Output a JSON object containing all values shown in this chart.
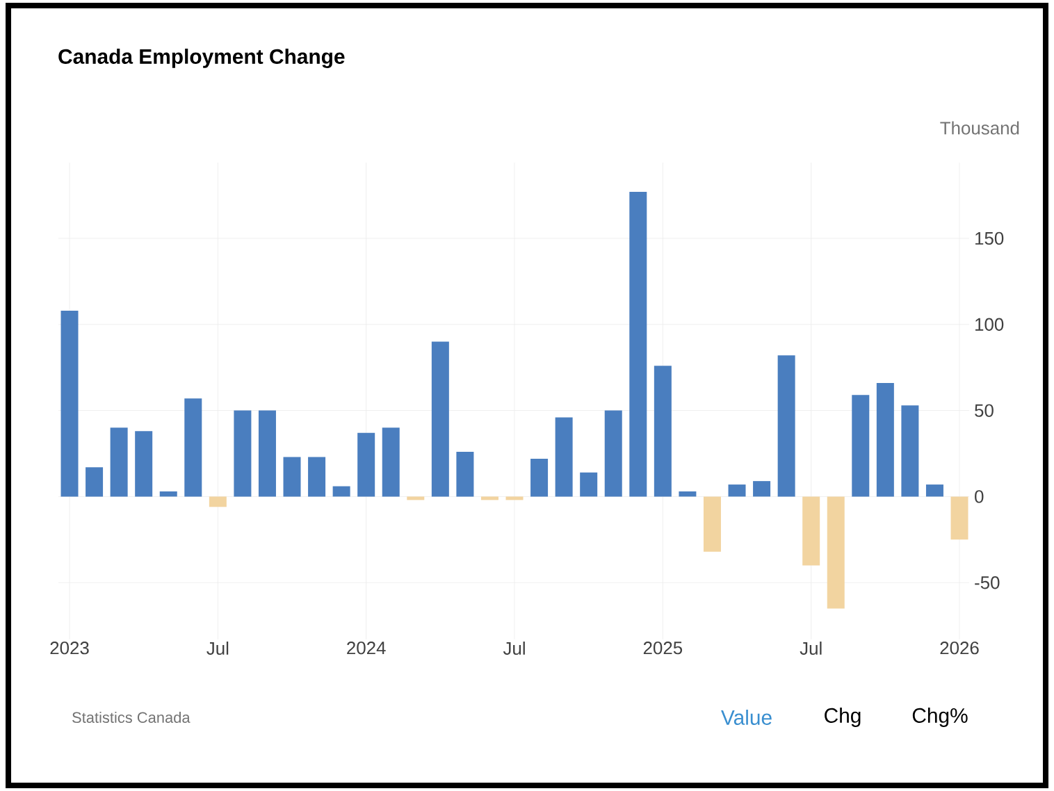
{
  "chart_data": {
    "type": "bar",
    "title": "Canada Employment Change",
    "ylabel": "Thousand",
    "categories": [
      "2023",
      null,
      null,
      null,
      null,
      null,
      "Jul",
      null,
      null,
      null,
      null,
      null,
      "2024",
      null,
      null,
      null,
      null,
      null,
      "Jul",
      null,
      null,
      null,
      null,
      null,
      "2025",
      null,
      null,
      null,
      null,
      null,
      "Jul",
      null,
      null,
      null,
      null,
      null,
      "2026"
    ],
    "values": [
      108,
      17,
      40,
      38,
      3,
      57,
      -6,
      50,
      50,
      23,
      23,
      6,
      37,
      40,
      -2,
      90,
      26,
      -2,
      -2,
      22,
      46,
      14,
      50,
      177,
      76,
      3,
      -32,
      7,
      9,
      82,
      -40,
      -65,
      59,
      66,
      53,
      7,
      -25
    ],
    "colors": [
      "#4a7ebf",
      "#4a7ebf",
      "#4a7ebf",
      "#4a7ebf",
      "#4a7ebf",
      "#4a7ebf",
      "#f2d4a0",
      "#4a7ebf",
      "#4a7ebf",
      "#4a7ebf",
      "#4a7ebf",
      "#4a7ebf",
      "#4a7ebf",
      "#4a7ebf",
      "#f2d4a0",
      "#4a7ebf",
      "#4a7ebf",
      "#f2d4a0",
      "#f2d4a0",
      "#4a7ebf",
      "#4a7ebf",
      "#4a7ebf",
      "#4a7ebf",
      "#4a7ebf",
      "#4a7ebf",
      "#4a7ebf",
      "#f2d4a0",
      "#4a7ebf",
      "#4a7ebf",
      "#4a7ebf",
      "#f2d4a0",
      "#f2d4a0",
      "#4a7ebf",
      "#4a7ebf",
      "#4a7ebf",
      "#4a7ebf",
      "#f2d4a0"
    ],
    "ylim": [
      -83,
      194
    ],
    "yticks": [
      -50,
      0,
      50,
      100,
      150
    ],
    "grid": true,
    "annotations": [
      "Statistics Canada",
      "Value",
      "Chg",
      "Chg%"
    ]
  }
}
